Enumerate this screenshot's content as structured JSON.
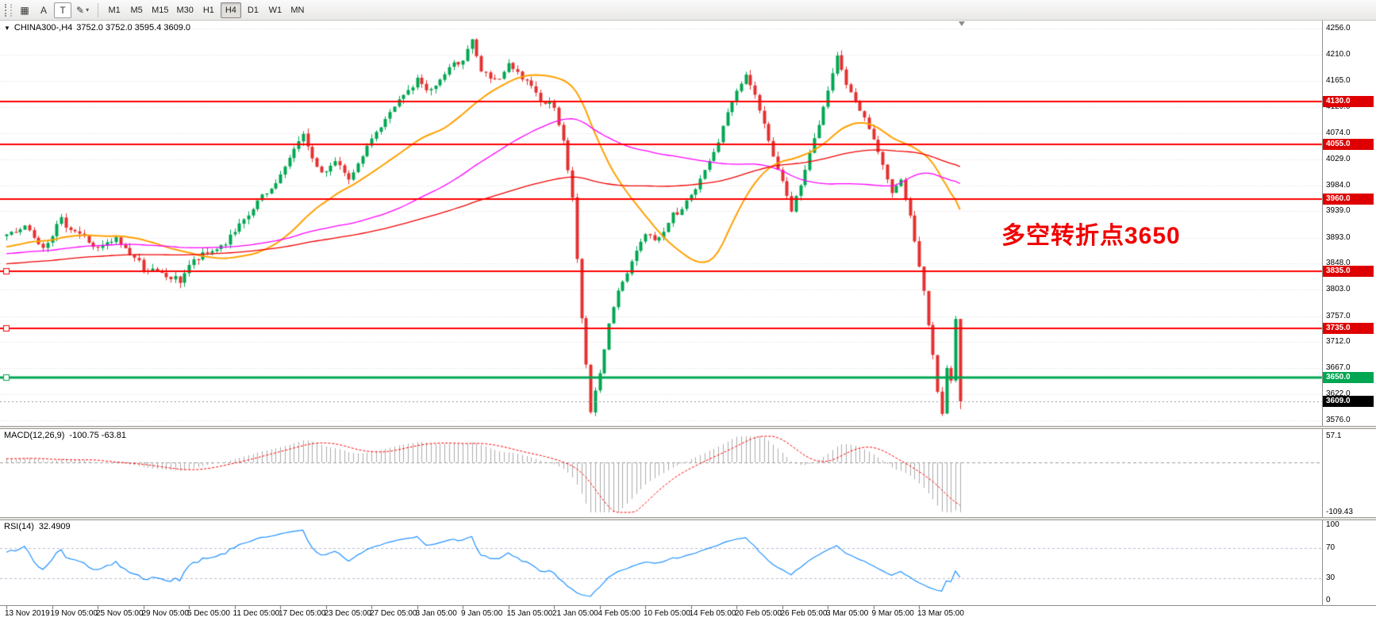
{
  "toolbar": {
    "tools": [
      {
        "id": "grid-tool",
        "glyph": "▦"
      },
      {
        "id": "text-annotation-tool",
        "glyph": "A"
      },
      {
        "id": "text-label-tool",
        "glyph": "T",
        "boxed": true
      },
      {
        "id": "drawing-tool",
        "glyph": "✎",
        "caret": "▾"
      }
    ],
    "timeframes": [
      "M1",
      "M5",
      "M15",
      "M30",
      "H1",
      "H4",
      "D1",
      "W1",
      "MN"
    ],
    "active_timeframe": "H4"
  },
  "title_bar": {
    "dropdown_glyph": "▼",
    "symbol_period": "CHINA300-,H4",
    "ohlc": "3752.0 3752.0 3595.4 3609.0"
  },
  "annotation": {
    "text": "多空转折点3650",
    "color": "#F00000"
  },
  "price_axis": {
    "ticks": [
      "4256.0",
      "4210.0",
      "4165.0",
      "4120.0",
      "4074.0",
      "4029.0",
      "3984.0",
      "3939.0",
      "3893.0",
      "3848.0",
      "3803.0",
      "3757.0",
      "3712.0",
      "3667.0",
      "3622.0",
      "3576.0"
    ]
  },
  "time_axis": {
    "labels": [
      "13 Nov 2019",
      "19 Nov 05:00",
      "25 Nov 05:00",
      "29 Nov 05:00",
      "5 Dec 05:00",
      "11 Dec 05:00",
      "17 Dec 05:00",
      "23 Dec 05:00",
      "27 Dec 05:00",
      "3 Jan 05:00",
      "9 Jan 05:00",
      "15 Jan 05:00",
      "21 Jan 05:00",
      "4 Feb 05:00",
      "10 Feb 05:00",
      "14 Feb 05:00",
      "20 Feb 05:00",
      "26 Feb 05:00",
      "3 Mar 05:00",
      "9 Mar 05:00",
      "13 Mar 05:00"
    ]
  },
  "hlines": [
    {
      "value": 4130.0,
      "label": "4130.0",
      "color": "#FF0000",
      "badge_bg": "#DE0000",
      "thickness": 2,
      "marker": false
    },
    {
      "value": 4055.0,
      "label": "4055.0",
      "color": "#FF0000",
      "badge_bg": "#DE0000",
      "thickness": 2,
      "marker": false
    },
    {
      "value": 3960.0,
      "label": "3960.0",
      "color": "#FF0000",
      "badge_bg": "#DE0000",
      "thickness": 2,
      "marker": false
    },
    {
      "value": 3835.0,
      "label": "3835.0",
      "color": "#FF0000",
      "badge_bg": "#DE0000",
      "thickness": 2,
      "marker": true
    },
    {
      "value": 3735.0,
      "label": "3735.0",
      "color": "#FF0000",
      "badge_bg": "#DE0000",
      "thickness": 2,
      "marker": true
    },
    {
      "value": 3650.0,
      "label": "3650.0",
      "color": "#00A651",
      "badge_bg": "#00A651",
      "thickness": 3,
      "marker": true
    }
  ],
  "current_price": {
    "value": 3609.0,
    "label": "3609.0",
    "badge_bg": "#000000"
  },
  "macd_panel": {
    "title": "MACD(12,26,9)",
    "values": "-100.75 -63.81",
    "axis_labels": [
      "57.1",
      "-109.43"
    ]
  },
  "rsi_panel": {
    "title": "RSI(14)",
    "value": "32.4909",
    "axis_labels": [
      "100",
      "70",
      "30",
      "0"
    ],
    "levels": [
      70,
      30
    ]
  },
  "chart_data": {
    "type": "candlestick",
    "symbol": "CHINA300-",
    "period": "H4",
    "price_range": [
      3576,
      4256
    ],
    "visible": 210,
    "prehistory": 130,
    "x_label_stride": 10,
    "seed": 7,
    "noise": 7,
    "wick": 9,
    "up_color": "#00A651",
    "down_color": "#E53030",
    "last_candle": {
      "open": 3752.0,
      "high": 3752.0,
      "low": 3595.4,
      "close": 3609.0
    },
    "close_anchors": [
      [
        0,
        3830
      ],
      [
        15,
        3805
      ],
      [
        30,
        3842
      ],
      [
        45,
        3818
      ],
      [
        60,
        3860
      ],
      [
        75,
        3836
      ],
      [
        90,
        3872
      ],
      [
        105,
        3854
      ],
      [
        120,
        3886
      ],
      [
        129,
        3895
      ],
      [
        134,
        3915
      ],
      [
        138,
        3880
      ],
      [
        142,
        3922
      ],
      [
        146,
        3900
      ],
      [
        150,
        3872
      ],
      [
        154,
        3890
      ],
      [
        158,
        3858
      ],
      [
        160,
        3842
      ],
      [
        164,
        3828
      ],
      [
        168,
        3818
      ],
      [
        170,
        3846
      ],
      [
        174,
        3866
      ],
      [
        178,
        3884
      ],
      [
        182,
        3920
      ],
      [
        185,
        3955
      ],
      [
        188,
        3976
      ],
      [
        190,
        4002
      ],
      [
        193,
        4046
      ],
      [
        195,
        4076
      ],
      [
        197,
        4030
      ],
      [
        199,
        4000
      ],
      [
        202,
        4032
      ],
      [
        205,
        3990
      ],
      [
        207,
        4020
      ],
      [
        210,
        4066
      ],
      [
        213,
        4096
      ],
      [
        216,
        4130
      ],
      [
        220,
        4166
      ],
      [
        223,
        4148
      ],
      [
        226,
        4176
      ],
      [
        230,
        4206
      ],
      [
        232,
        4237
      ],
      [
        234,
        4180
      ],
      [
        237,
        4163
      ],
      [
        240,
        4190
      ],
      [
        243,
        4170
      ],
      [
        246,
        4140
      ],
      [
        250,
        4120
      ],
      [
        252,
        4060
      ],
      [
        254,
        3962
      ],
      [
        256,
        3752
      ],
      [
        258,
        3592
      ],
      [
        259,
        3628
      ],
      [
        260,
        3656
      ],
      [
        262,
        3746
      ],
      [
        264,
        3800
      ],
      [
        266,
        3832
      ],
      [
        268,
        3872
      ],
      [
        270,
        3900
      ],
      [
        273,
        3890
      ],
      [
        276,
        3932
      ],
      [
        280,
        3962
      ],
      [
        283,
        4010
      ],
      [
        286,
        4060
      ],
      [
        288,
        4110
      ],
      [
        290,
        4148
      ],
      [
        292,
        4176
      ],
      [
        294,
        4140
      ],
      [
        296,
        4090
      ],
      [
        298,
        4035
      ],
      [
        300,
        3990
      ],
      [
        302,
        3945
      ],
      [
        304,
        3982
      ],
      [
        306,
        4040
      ],
      [
        308,
        4090
      ],
      [
        310,
        4150
      ],
      [
        312,
        4206
      ],
      [
        314,
        4160
      ],
      [
        316,
        4130
      ],
      [
        318,
        4100
      ],
      [
        320,
        4065
      ],
      [
        322,
        4020
      ],
      [
        324,
        3966
      ],
      [
        326,
        3990
      ],
      [
        328,
        3930
      ],
      [
        330,
        3842
      ],
      [
        331,
        3800
      ],
      [
        332,
        3742
      ],
      [
        333,
        3690
      ],
      [
        334,
        3625
      ],
      [
        335,
        3588
      ],
      [
        336,
        3668
      ],
      [
        337,
        3645
      ],
      [
        338,
        3752
      ],
      [
        339,
        3609
      ]
    ],
    "moving_averages": [
      {
        "period": 30,
        "color": "#FFA000",
        "width": 2
      },
      {
        "period": 70,
        "color": "#FF00FF",
        "width": 1.3
      },
      {
        "period": 130,
        "color": "#F00000",
        "width": 1.3
      }
    ],
    "macd": {
      "fast": 12,
      "slow": 26,
      "signal": 9,
      "scale_max": 57.1,
      "scale_min": -109.43,
      "hist_color": "#ABABAB",
      "signal_color": "#FF0000",
      "current_main": -100.75,
      "current_signal": -63.81
    },
    "rsi": {
      "period": 14,
      "color": "#1E90FF",
      "levels": [
        70,
        30
      ],
      "current": 32.4909
    }
  }
}
